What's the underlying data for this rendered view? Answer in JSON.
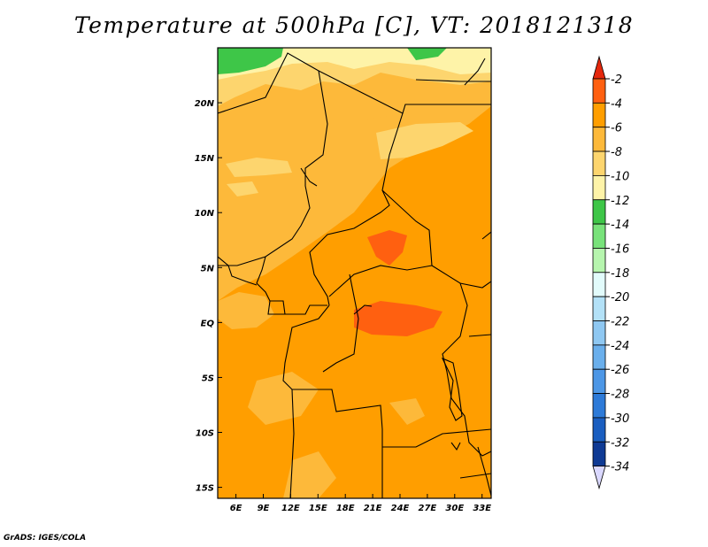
{
  "title": "Temperature at 500hPa [C], VT: 2018121318",
  "credit": "GrADS: IGES/COLA",
  "map": {
    "lon_range": [
      4,
      34
    ],
    "lat_range": [
      -16,
      25
    ],
    "lon_ticks": [
      {
        "value": 6,
        "label": "6E"
      },
      {
        "value": 9,
        "label": "9E"
      },
      {
        "value": 12,
        "label": "12E"
      },
      {
        "value": 15,
        "label": "15E"
      },
      {
        "value": 18,
        "label": "18E"
      },
      {
        "value": 21,
        "label": "21E"
      },
      {
        "value": 24,
        "label": "24E"
      },
      {
        "value": 27,
        "label": "27E"
      },
      {
        "value": 30,
        "label": "30E"
      },
      {
        "value": 33,
        "label": "33E"
      }
    ],
    "lat_ticks": [
      {
        "value": 20,
        "label": "20N"
      },
      {
        "value": 15,
        "label": "15N"
      },
      {
        "value": 10,
        "label": "10N"
      },
      {
        "value": 5,
        "label": "5N"
      },
      {
        "value": 0,
        "label": "EQ"
      },
      {
        "value": -5,
        "label": "5S"
      },
      {
        "value": -10,
        "label": "10S"
      },
      {
        "value": -15,
        "label": "15S"
      }
    ]
  },
  "colorbar": {
    "levels": [
      "-2",
      "-4",
      "-6",
      "-8",
      "-10",
      "-12",
      "-14",
      "-16",
      "-18",
      "-20",
      "-22",
      "-24",
      "-26",
      "-28",
      "-30",
      "-32",
      "-34"
    ],
    "colors_top_to_bottom": [
      "#ff6010",
      "#ff9e00",
      "#fdb93a",
      "#fdd56e",
      "#fef3a8",
      "#3ec648",
      "#78e27a",
      "#b6f5ae",
      "#e2fbfb",
      "#b3e1f7",
      "#8fc8f2",
      "#6aafec",
      "#4d97e6",
      "#2d7ad8",
      "#1a5ec0",
      "#0f3a94"
    ],
    "top_arrow_color": "#e5280d",
    "bottom_arrow_color": "#dad8ff"
  }
}
